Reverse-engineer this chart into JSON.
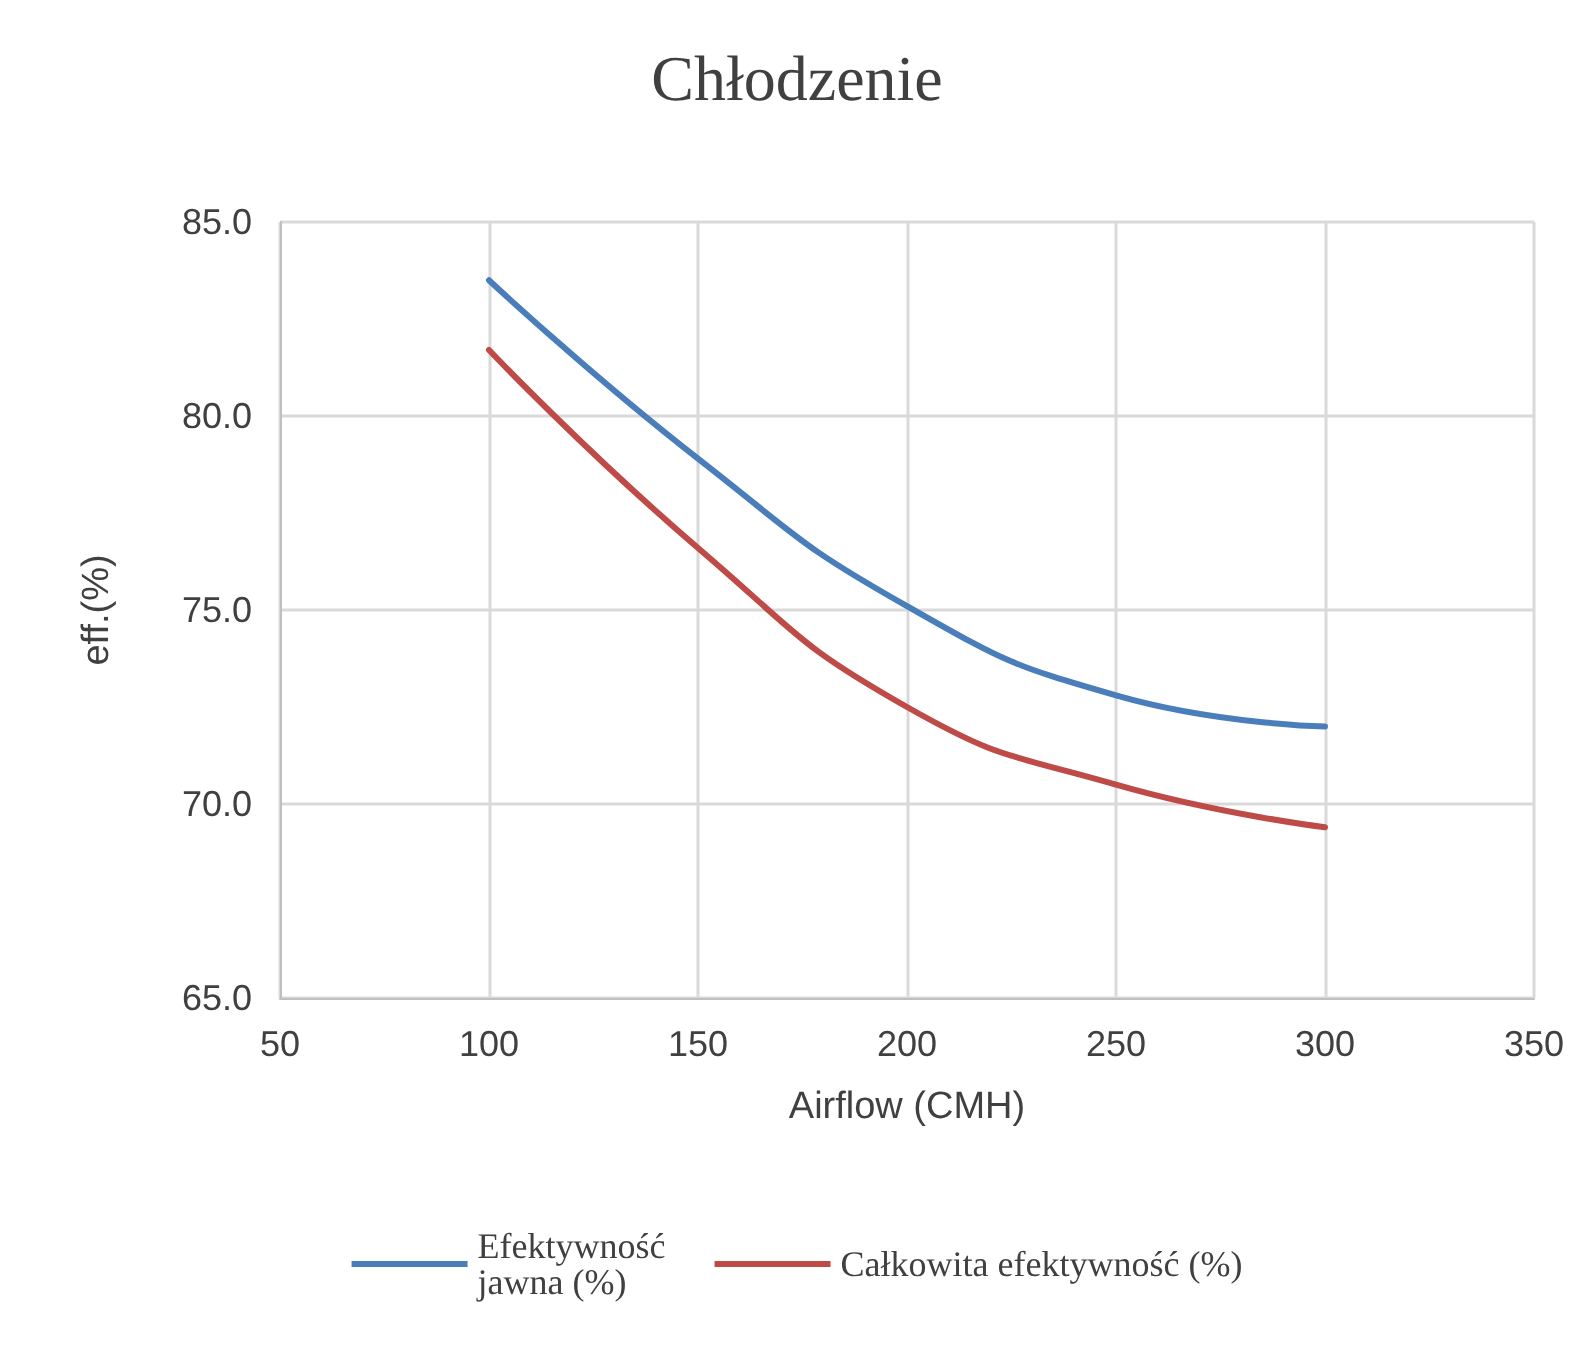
{
  "chart_data": {
    "type": "line",
    "title": "Chłodzenie",
    "xlabel": "Airflow (CMH)",
    "ylabel": "eff.(%)",
    "x": [
      100,
      150,
      200,
      250,
      300
    ],
    "series": [
      {
        "name": "Efektywność jawna (%)",
        "color": "#4a7ebb",
        "values": [
          83.5,
          78.9,
          75.1,
          72.8,
          72.0
        ]
      },
      {
        "name": "Całkowita efektywność (%)",
        "color": "#be4b48",
        "values": [
          81.7,
          76.6,
          72.5,
          70.5,
          69.4
        ]
      }
    ],
    "xlim": [
      50,
      350
    ],
    "xticks": [
      50,
      100,
      150,
      200,
      250,
      300,
      350
    ],
    "ylim": [
      65,
      85
    ],
    "yticks": [
      {
        "value": 65,
        "label": "65.0"
      },
      {
        "value": 70,
        "label": "70.0"
      },
      {
        "value": 75,
        "label": "75.0"
      },
      {
        "value": 80,
        "label": "80.0"
      },
      {
        "value": 85,
        "label": "85.0"
      }
    ],
    "grid": true,
    "legend": "bottom",
    "marker": "none",
    "line_style": "solid"
  }
}
